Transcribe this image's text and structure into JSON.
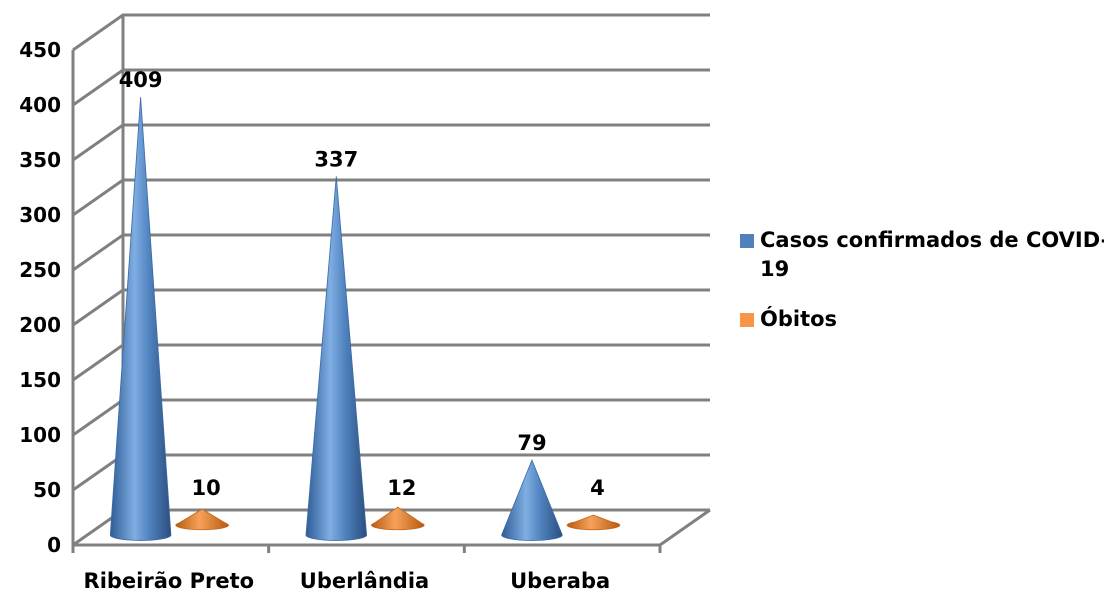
{
  "chart_data": {
    "type": "bar",
    "categories": [
      "Ribeirão Preto",
      "Uberlândia",
      "Uberaba"
    ],
    "series": [
      {
        "name": "Casos confirmados de COVID-19",
        "values": [
          409,
          337,
          79
        ],
        "color": "#4F81BD"
      },
      {
        "name": "Óbitos",
        "values": [
          10,
          12,
          4
        ],
        "color": "#F79646"
      }
    ],
    "data_labels": [
      [
        "409",
        "337",
        "79"
      ],
      [
        "10",
        "12",
        "4"
      ]
    ],
    "y_ticks": [
      "0",
      "50",
      "100",
      "150",
      "200",
      "250",
      "300",
      "350",
      "400",
      "450"
    ],
    "ylim": [
      0,
      450
    ],
    "grid": true,
    "legend": {
      "position": "right",
      "lines": [
        [
          "Casos confirmados de COVID-",
          "19"
        ],
        [
          "Óbitos"
        ]
      ]
    },
    "style": "3d-cone"
  }
}
